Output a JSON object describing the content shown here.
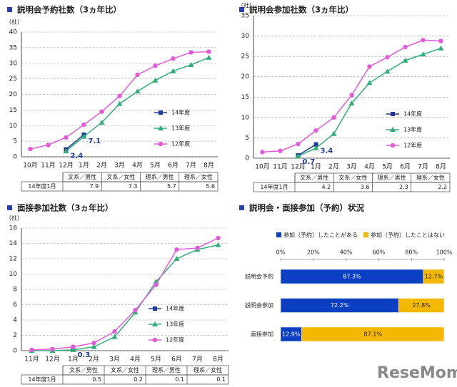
{
  "chart_data": [
    {
      "type": "line",
      "title": "説明会予約社数（3ヵ年比）",
      "unit": "（社）",
      "categories": [
        "10月",
        "11月",
        "12月",
        "1月",
        "2月",
        "3月",
        "4月",
        "5月",
        "6月",
        "7月",
        "8月"
      ],
      "ylim": [
        0,
        40
      ],
      "yticks": [
        0,
        5,
        10,
        15,
        20,
        25,
        30,
        35,
        40
      ],
      "grid": true,
      "series": [
        {
          "name": "14年度",
          "color": "#1f3a9c",
          "marker": "square",
          "data_labels": true,
          "values": [
            null,
            null,
            2.4,
            7.1,
            null,
            null,
            null,
            null,
            null,
            null,
            null
          ]
        },
        {
          "name": "13年度",
          "color": "#2fae78",
          "marker": "triangle",
          "values": [
            null,
            null,
            1.8,
            6.5,
            11,
            17,
            21,
            24.5,
            27.5,
            29.5,
            31.8
          ]
        },
        {
          "name": "12年度",
          "color": "#e35bd8",
          "marker": "circle",
          "values": [
            2.5,
            3.8,
            6.2,
            10.3,
            14.5,
            19.5,
            26.3,
            29.2,
            31.5,
            33.5,
            33.7
          ]
        }
      ],
      "table": {
        "columns": [
          "文系／男性",
          "文系／女性",
          "理系／男性",
          "理系／女性"
        ],
        "row": "14年度1月",
        "values": [
          7.9,
          7.3,
          5.7,
          5.6
        ]
      }
    },
    {
      "type": "line",
      "title": "説明会参加社数（3ヵ年比）",
      "unit": "（社）",
      "categories": [
        "10月",
        "11月",
        "12月",
        "1月",
        "2月",
        "3月",
        "4月",
        "5月",
        "6月",
        "7月",
        "8月"
      ],
      "ylim": [
        0,
        35
      ],
      "yticks": [
        0,
        5,
        10,
        15,
        20,
        25,
        30,
        35
      ],
      "grid": true,
      "series": [
        {
          "name": "14年度",
          "color": "#1f3a9c",
          "marker": "square",
          "data_labels": true,
          "values": [
            null,
            null,
            0.7,
            3.4,
            null,
            null,
            null,
            null,
            null,
            null,
            null
          ]
        },
        {
          "name": "13年度",
          "color": "#2fae78",
          "marker": "triangle",
          "values": [
            null,
            null,
            0.5,
            2.5,
            6,
            13.5,
            18.5,
            21.3,
            24,
            25.5,
            27
          ]
        },
        {
          "name": "12年度",
          "color": "#e35bd8",
          "marker": "circle",
          "values": [
            1.5,
            1.8,
            3.5,
            6.8,
            10,
            15.5,
            22.5,
            24.8,
            27.3,
            29,
            28.8
          ]
        }
      ],
      "table": {
        "columns": [
          "文系／男性",
          "文系／女性",
          "理系／男性",
          "理系／女性"
        ],
        "row": "14年度1月",
        "values": [
          4.2,
          3.6,
          2.3,
          2.2
        ]
      }
    },
    {
      "type": "line",
      "title": "面接参加社数（3ヵ年比）",
      "unit": "（社）",
      "categories": [
        "11月",
        "12月",
        "1月",
        "2月",
        "3月",
        "4月",
        "5月",
        "6月",
        "7月",
        "8月"
      ],
      "ylim": [
        0,
        16
      ],
      "yticks": [
        0,
        2,
        4,
        6,
        8,
        10,
        12,
        14,
        16
      ],
      "grid": true,
      "series": [
        {
          "name": "14年度",
          "color": "#1f3a9c",
          "marker": "square",
          "data_labels": true,
          "values": [
            null,
            null,
            0.3,
            null,
            null,
            null,
            null,
            null,
            null,
            null
          ]
        },
        {
          "name": "13年度",
          "color": "#2fae78",
          "marker": "triangle",
          "values": [
            0,
            0,
            0.1,
            0.5,
            1.8,
            5,
            9,
            12,
            13.2,
            13.8
          ]
        },
        {
          "name": "12年度",
          "color": "#e35bd8",
          "marker": "circle",
          "values": [
            0.1,
            0.2,
            0.5,
            1,
            2.5,
            5.3,
            8.6,
            13.2,
            13.4,
            14.7
          ]
        }
      ],
      "table": {
        "columns": [
          "文系／男性",
          "文系／女性",
          "理系／男性",
          "理系／女性"
        ],
        "row": "14年度1月",
        "values": [
          0.5,
          0.2,
          0.1,
          0.1
        ]
      }
    },
    {
      "type": "stacked-barh",
      "title": "説明会・面接参加（予約）状況",
      "categories": [
        "説明会予約",
        "説明会参加",
        "面接参加"
      ],
      "xlim": [
        0,
        100
      ],
      "xticks": [
        {
          "value": 0,
          "label": "0%"
        },
        {
          "value": 20,
          "label": "20%"
        },
        {
          "value": 40,
          "label": "40%"
        },
        {
          "value": 60,
          "label": "60%"
        },
        {
          "value": 80,
          "label": "80%"
        },
        {
          "value": 100,
          "label": "100%"
        }
      ],
      "series": [
        {
          "name": "参加（予約）したことがある",
          "color": "#0d3fc2",
          "values": [
            87.3,
            72.2,
            12.9
          ],
          "value_labels": [
            "87.3%",
            "72.2%",
            "12.9%"
          ]
        },
        {
          "name": "参加（予約）したことはない",
          "color": "#f5b800",
          "values": [
            12.7,
            27.8,
            87.1
          ],
          "value_labels": [
            "12.7%",
            "27.8%",
            "87.1%"
          ]
        }
      ]
    }
  ],
  "watermark": "ReseMom"
}
